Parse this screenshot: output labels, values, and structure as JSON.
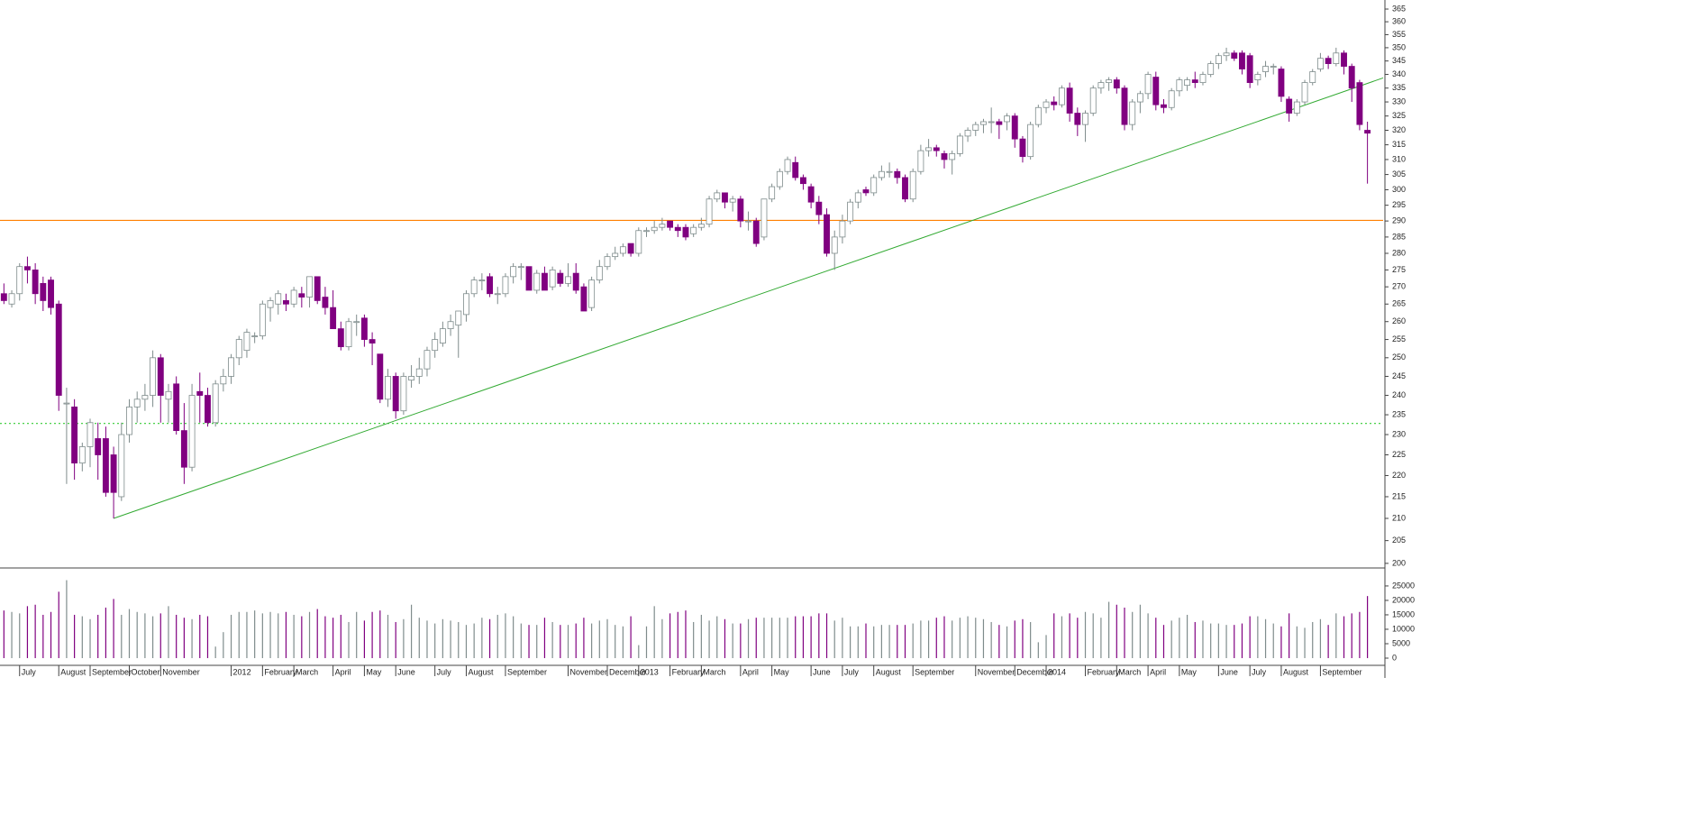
{
  "chart_data": {
    "type": "candlestick",
    "log_scale": true,
    "up_color": "#ffffff",
    "up_edge": "#7f8c8c",
    "down_color": "#800080",
    "xlim": [
      -0.5,
      176
    ],
    "xticks": [
      {
        "value": 2,
        "label": "July"
      },
      {
        "value": 7,
        "label": "August"
      },
      {
        "value": 11,
        "label": "September"
      },
      {
        "value": 16,
        "label": "October"
      },
      {
        "value": 20,
        "label": "November"
      },
      {
        "value": 29,
        "label": "2012"
      },
      {
        "value": 33,
        "label": "February"
      },
      {
        "value": 37,
        "label": "March"
      },
      {
        "value": 42,
        "label": "April"
      },
      {
        "value": 46,
        "label": "May"
      },
      {
        "value": 50,
        "label": "June"
      },
      {
        "value": 55,
        "label": "July"
      },
      {
        "value": 59,
        "label": "August"
      },
      {
        "value": 64,
        "label": "September"
      },
      {
        "value": 72,
        "label": "November"
      },
      {
        "value": 77,
        "label": "December"
      },
      {
        "value": 81,
        "label": "2013"
      },
      {
        "value": 85,
        "label": "February"
      },
      {
        "value": 89,
        "label": "March"
      },
      {
        "value": 94,
        "label": "April"
      },
      {
        "value": 98,
        "label": "May"
      },
      {
        "value": 103,
        "label": "June"
      },
      {
        "value": 107,
        "label": "July"
      },
      {
        "value": 111,
        "label": "August"
      },
      {
        "value": 116,
        "label": "September"
      },
      {
        "value": 124,
        "label": "November"
      },
      {
        "value": 129,
        "label": "December"
      },
      {
        "value": 133,
        "label": "2014"
      },
      {
        "value": 138,
        "label": "February"
      },
      {
        "value": 142,
        "label": "March"
      },
      {
        "value": 146,
        "label": "April"
      },
      {
        "value": 150,
        "label": "May"
      },
      {
        "value": 155,
        "label": "June"
      },
      {
        "value": 159,
        "label": "July"
      },
      {
        "value": 163,
        "label": "August"
      },
      {
        "value": 168,
        "label": "September"
      }
    ],
    "ylim": [
      199,
      368.6
    ],
    "yticks": [
      200,
      205,
      210,
      215,
      220,
      225,
      230,
      235,
      240,
      245,
      250,
      255,
      260,
      265,
      270,
      275,
      280,
      285,
      290,
      295,
      300,
      305,
      310,
      315,
      320,
      325,
      330,
      335,
      340,
      345,
      350,
      355,
      360,
      365
    ],
    "y2lim": [
      0,
      30600
    ],
    "y2ticks": [
      0,
      5000,
      10000,
      15000,
      20000,
      25000
    ],
    "levels": [
      {
        "value": 290.2,
        "color": "#ff8000",
        "style": "solid"
      },
      {
        "value": 232.8,
        "color": "#33cc33",
        "style": "dotted"
      }
    ],
    "trendline": {
      "points": [
        [
          14,
          210
        ],
        [
          176,
          338.7
        ]
      ],
      "color": "#33aa33"
    },
    "ohlc": [
      [
        268,
        271,
        265,
        266
      ],
      [
        265,
        269,
        264,
        268
      ],
      [
        268,
        277,
        266,
        276
      ],
      [
        276,
        279,
        271,
        275
      ],
      [
        275,
        277,
        265,
        268
      ],
      [
        271,
        273,
        263,
        266
      ],
      [
        272,
        273,
        262,
        264
      ],
      [
        265,
        266,
        236,
        240
      ],
      [
        238,
        242,
        218,
        238
      ],
      [
        237,
        239,
        219,
        223
      ],
      [
        223,
        228,
        221,
        227
      ],
      [
        227,
        234,
        222,
        233
      ],
      [
        229,
        233,
        219,
        225
      ],
      [
        229,
        232,
        215,
        216
      ],
      [
        225,
        227,
        210,
        216
      ],
      [
        215,
        233,
        214,
        230
      ],
      [
        230,
        239,
        228,
        237
      ],
      [
        237,
        241,
        233,
        239
      ],
      [
        239,
        243,
        236,
        240
      ],
      [
        240,
        252,
        237,
        250
      ],
      [
        250,
        251,
        233,
        240
      ],
      [
        239,
        243,
        233,
        241
      ],
      [
        243,
        245,
        230,
        231
      ],
      [
        231,
        238,
        218,
        222
      ],
      [
        222,
        243,
        221,
        240
      ],
      [
        241,
        246,
        233,
        240
      ],
      [
        240,
        242,
        232,
        233
      ],
      [
        233,
        244,
        232,
        243
      ],
      [
        243,
        247,
        241,
        245
      ],
      [
        245,
        251,
        243,
        250
      ],
      [
        250,
        256,
        248,
        255
      ],
      [
        252,
        258,
        250,
        257
      ],
      [
        256,
        257,
        254,
        256
      ],
      [
        256,
        266,
        255,
        265
      ],
      [
        264,
        267,
        260,
        266
      ],
      [
        265,
        269,
        262,
        268
      ],
      [
        266,
        268,
        263,
        265
      ],
      [
        265,
        270,
        264,
        269
      ],
      [
        268,
        270,
        264,
        267
      ],
      [
        267,
        273,
        264,
        273
      ],
      [
        273,
        273,
        265,
        266
      ],
      [
        267,
        270,
        262,
        264
      ],
      [
        264,
        269,
        258,
        258
      ],
      [
        258,
        260,
        252,
        253
      ],
      [
        253,
        261,
        252,
        260
      ],
      [
        260,
        262,
        256,
        260
      ],
      [
        261,
        262,
        253,
        255
      ],
      [
        255,
        257,
        248,
        254
      ],
      [
        251,
        251,
        238,
        239
      ],
      [
        239,
        247,
        237,
        245
      ],
      [
        245,
        246,
        234,
        236
      ],
      [
        236,
        246,
        235,
        245
      ],
      [
        244,
        248,
        242,
        245
      ],
      [
        245,
        250,
        243,
        247
      ],
      [
        247,
        253,
        245,
        252
      ],
      [
        252,
        257,
        250,
        255
      ],
      [
        254,
        260,
        253,
        258
      ],
      [
        258,
        262,
        256,
        260
      ],
      [
        259,
        263,
        250,
        263
      ],
      [
        262,
        269,
        260,
        268
      ],
      [
        268,
        273,
        267,
        272
      ],
      [
        272,
        274,
        269,
        272
      ],
      [
        273,
        274,
        267,
        268
      ],
      [
        268,
        270,
        265,
        268
      ],
      [
        268,
        274,
        267,
        273
      ],
      [
        273,
        277,
        271,
        276
      ],
      [
        276,
        277,
        272,
        276
      ],
      [
        276,
        276,
        269,
        269
      ],
      [
        269,
        275,
        268,
        274
      ],
      [
        274,
        276,
        269,
        269
      ],
      [
        270,
        276,
        269,
        275
      ],
      [
        274,
        275,
        270,
        271
      ],
      [
        271,
        277,
        270,
        273
      ],
      [
        274,
        277,
        268,
        269
      ],
      [
        270,
        271,
        263,
        263
      ],
      [
        264,
        273,
        263,
        272
      ],
      [
        272,
        278,
        271,
        276
      ],
      [
        276,
        280,
        275,
        279
      ],
      [
        279,
        282,
        278,
        280
      ],
      [
        280,
        283,
        279,
        282
      ],
      [
        283,
        283,
        279,
        280
      ],
      [
        280,
        288,
        279,
        287
      ],
      [
        287,
        288,
        285,
        287
      ],
      [
        287,
        290,
        286,
        288
      ],
      [
        288,
        291,
        287,
        289
      ],
      [
        290,
        290,
        287,
        288
      ],
      [
        288,
        289,
        285,
        287
      ],
      [
        288,
        289,
        284,
        285
      ],
      [
        286,
        289,
        285,
        288
      ],
      [
        288,
        291,
        287,
        289
      ],
      [
        289,
        298,
        288,
        297
      ],
      [
        297,
        300,
        296,
        299
      ],
      [
        299,
        299,
        294,
        296
      ],
      [
        296,
        298,
        293,
        297
      ],
      [
        297,
        298,
        288,
        290
      ],
      [
        290,
        293,
        287,
        290
      ],
      [
        290,
        291,
        282,
        283
      ],
      [
        285,
        297,
        284,
        297
      ],
      [
        297,
        302,
        296,
        301
      ],
      [
        301,
        307,
        300,
        306
      ],
      [
        306,
        311,
        305,
        310
      ],
      [
        309,
        311,
        303,
        304
      ],
      [
        304,
        305,
        300,
        302
      ],
      [
        301,
        302,
        294,
        296
      ],
      [
        296,
        298,
        289,
        292
      ],
      [
        292,
        294,
        279,
        280
      ],
      [
        280,
        287,
        275,
        285
      ],
      [
        285,
        292,
        283,
        290
      ],
      [
        290,
        297,
        289,
        296
      ],
      [
        296,
        300,
        294,
        299
      ],
      [
        300,
        301,
        298,
        299
      ],
      [
        299,
        305,
        298,
        304
      ],
      [
        304,
        308,
        303,
        306
      ],
      [
        306,
        309,
        304,
        306
      ],
      [
        306,
        307,
        302,
        304
      ],
      [
        304,
        305,
        296,
        297
      ],
      [
        297,
        307,
        296,
        306
      ],
      [
        306,
        315,
        305,
        313
      ],
      [
        313,
        317,
        311,
        314
      ],
      [
        314,
        315,
        311,
        313
      ],
      [
        312,
        313,
        307,
        310
      ],
      [
        310,
        313,
        305,
        312
      ],
      [
        312,
        319,
        311,
        318
      ],
      [
        318,
        321,
        316,
        320
      ],
      [
        320,
        323,
        318,
        322
      ],
      [
        322,
        324,
        319,
        323
      ],
      [
        323,
        328,
        319,
        323
      ],
      [
        323,
        324,
        317,
        322
      ],
      [
        323,
        326,
        320,
        325
      ],
      [
        325,
        326,
        314,
        317
      ],
      [
        317,
        318,
        309,
        311
      ],
      [
        311,
        323,
        310,
        322
      ],
      [
        322,
        329,
        321,
        328
      ],
      [
        328,
        331,
        326,
        330
      ],
      [
        330,
        332,
        327,
        329
      ],
      [
        329,
        336,
        328,
        335
      ],
      [
        335,
        337,
        323,
        326
      ],
      [
        326,
        328,
        318,
        322
      ],
      [
        322,
        327,
        316,
        326
      ],
      [
        326,
        336,
        325,
        335
      ],
      [
        335,
        338,
        333,
        337
      ],
      [
        337,
        339,
        334,
        338
      ],
      [
        338,
        339,
        333,
        335
      ],
      [
        335,
        336,
        320,
        322
      ],
      [
        322,
        331,
        320,
        330
      ],
      [
        330,
        334,
        326,
        333
      ],
      [
        333,
        341,
        331,
        340
      ],
      [
        339,
        341,
        327,
        329
      ],
      [
        329,
        331,
        326,
        328
      ],
      [
        328,
        335,
        327,
        334
      ],
      [
        334,
        339,
        332,
        338
      ],
      [
        336,
        339,
        334,
        338
      ],
      [
        338,
        341,
        335,
        337
      ],
      [
        337,
        341,
        336,
        340
      ],
      [
        340,
        345,
        339,
        344
      ],
      [
        344,
        348,
        342,
        347
      ],
      [
        347,
        350,
        345,
        348
      ],
      [
        348,
        349,
        345,
        346
      ],
      [
        348,
        349,
        340,
        342
      ],
      [
        347,
        348,
        335,
        337
      ],
      [
        338,
        341,
        336,
        340
      ],
      [
        341,
        345,
        339,
        343
      ],
      [
        343,
        344,
        340,
        343
      ],
      [
        342,
        343,
        330,
        332
      ],
      [
        331,
        332,
        323,
        326
      ],
      [
        326,
        331,
        325,
        330
      ],
      [
        330,
        338,
        329,
        337
      ],
      [
        337,
        342,
        336,
        341
      ],
      [
        342,
        348,
        341,
        346
      ],
      [
        346,
        347,
        342,
        344
      ],
      [
        344,
        350,
        343,
        348
      ],
      [
        348,
        349,
        340,
        343
      ],
      [
        343,
        344,
        330,
        335
      ],
      [
        337,
        338,
        320,
        322
      ],
      [
        320,
        323,
        302,
        319
      ]
    ],
    "volume": [
      16500,
      16000,
      15500,
      18000,
      18500,
      15000,
      16000,
      23000,
      27000,
      15000,
      14500,
      13500,
      15000,
      17500,
      20500,
      15000,
      17000,
      16000,
      15500,
      14500,
      15500,
      18000,
      15000,
      14000,
      13500,
      15000,
      14500,
      4000,
      9000,
      15000,
      16000,
      16000,
      16500,
      15500,
      16000,
      15500,
      16000,
      15000,
      14500,
      16000,
      17000,
      14500,
      14000,
      15000,
      12500,
      16000,
      13000,
      16000,
      16500,
      15000,
      12500,
      13500,
      18500,
      14000,
      13000,
      12000,
      13500,
      13000,
      12500,
      11500,
      12000,
      14000,
      13500,
      15000,
      15500,
      14500,
      12000,
      11500,
      11500,
      14000,
      12500,
      11500,
      11500,
      12000,
      14000,
      12000,
      13000,
      13500,
      11500,
      11000,
      14500,
      4500,
      11000,
      18000,
      13500,
      15500,
      16000,
      16500,
      12500,
      15000,
      13000,
      14500,
      13500,
      12000,
      12000,
      13500,
      14000,
      14000,
      14000,
      14000,
      14000,
      14500,
      14500,
      14500,
      15500,
      15500,
      13000,
      14000,
      11000,
      11000,
      12000,
      11000,
      11500,
      11500,
      11500,
      11500,
      12000,
      13000,
      13000,
      14000,
      14500,
      13000,
      14000,
      14500,
      14000,
      13500,
      12500,
      11500,
      11000,
      13000,
      13500,
      12500,
      5500,
      8000,
      15500,
      14500,
      15500,
      14000,
      16000,
      15500,
      14000,
      19500,
      18500,
      17500,
      16000,
      18500,
      15500,
      14000,
      11500,
      13000,
      14000,
      15000,
      12500,
      13000,
      12000,
      12000,
      11500,
      11500,
      12000,
      14500,
      14500,
      13500,
      12000,
      11000,
      15500,
      11000,
      10500,
      12500,
      13500,
      11500,
      15500,
      14500,
      15500,
      16000,
      21500
    ]
  }
}
